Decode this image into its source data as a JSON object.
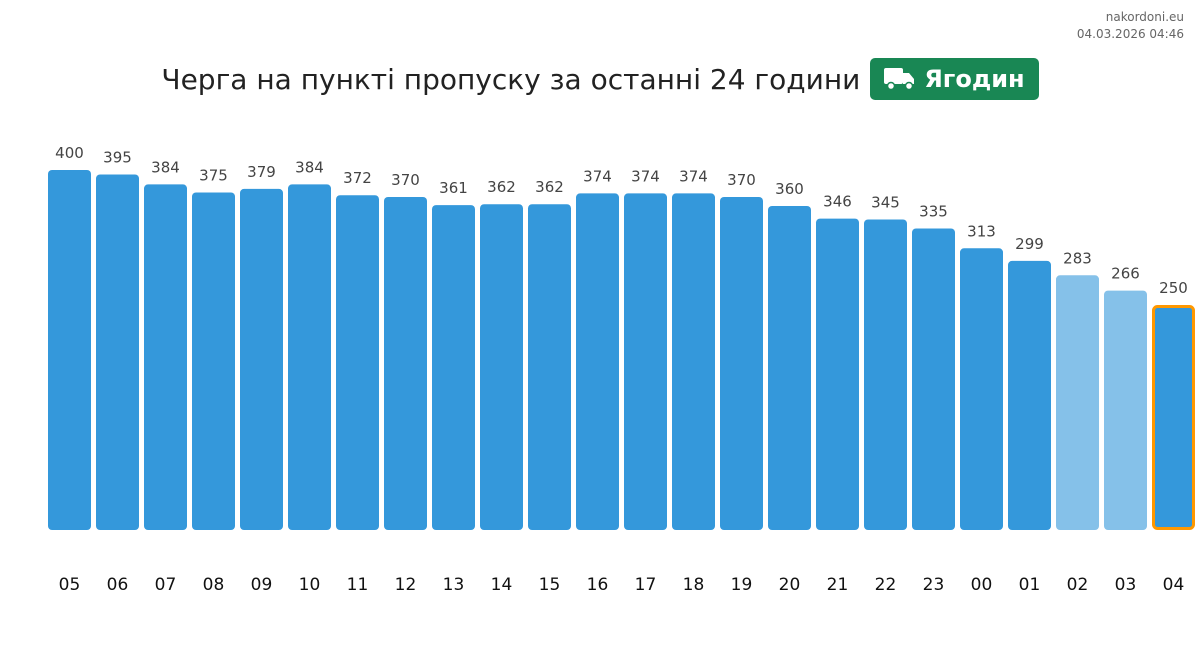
{
  "source": {
    "site": "nakordoni.eu",
    "timestamp": "04.03.2026 04:46"
  },
  "header": {
    "title": "Черга на пункті пропуску за останні 24 години",
    "badge_label": "Ягодин",
    "badge_icon": "truck-icon",
    "badge_color": "#198754"
  },
  "chart_data": {
    "type": "bar",
    "categories": [
      "05",
      "06",
      "07",
      "08",
      "09",
      "10",
      "11",
      "12",
      "13",
      "14",
      "15",
      "16",
      "17",
      "18",
      "19",
      "20",
      "21",
      "22",
      "23",
      "00",
      "01",
      "02",
      "03",
      "04"
    ],
    "values": [
      400,
      395,
      384,
      375,
      379,
      384,
      372,
      370,
      361,
      362,
      362,
      374,
      374,
      374,
      370,
      360,
      346,
      345,
      335,
      313,
      299,
      283,
      266,
      250
    ],
    "styles": [
      "normal",
      "normal",
      "normal",
      "normal",
      "normal",
      "normal",
      "normal",
      "normal",
      "normal",
      "normal",
      "normal",
      "normal",
      "normal",
      "normal",
      "normal",
      "normal",
      "normal",
      "normal",
      "normal",
      "normal",
      "normal",
      "light",
      "light",
      "current"
    ],
    "colors": {
      "normal": "#3498db",
      "light": "#85c1e9",
      "current_border": "#ff9800"
    },
    "ylim": [
      0,
      400
    ],
    "grid": false
  }
}
